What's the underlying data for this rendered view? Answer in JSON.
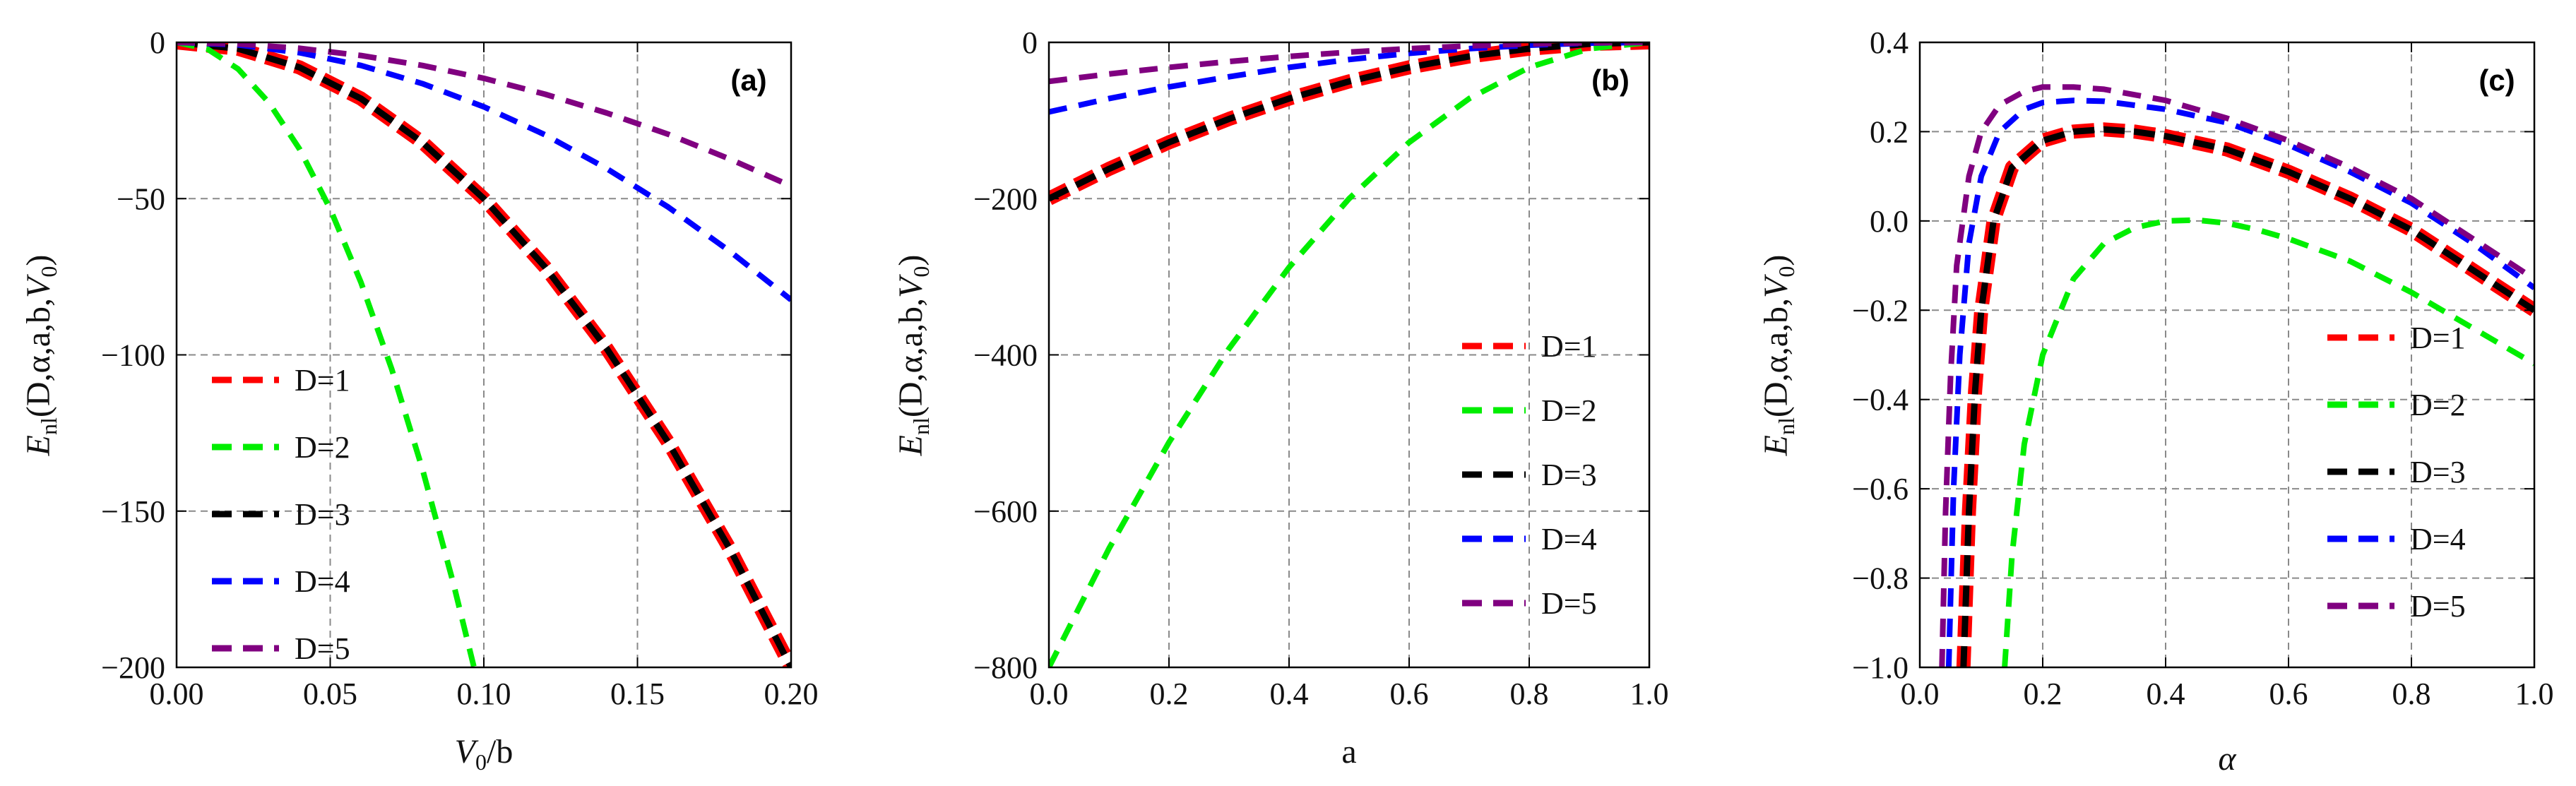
{
  "chart_data": [
    {
      "panel": "(a)",
      "type": "line",
      "xlabel": "V0/b",
      "ylabel": "Enl(D,α,a,b,V0)",
      "xlim": [
        0.0,
        0.2
      ],
      "ylim": [
        -200,
        0
      ],
      "xticks": [
        "0.00",
        "0.05",
        "0.10",
        "0.15",
        "0.20"
      ],
      "xtick_values": [
        0.0,
        0.05,
        0.1,
        0.15,
        0.2
      ],
      "yticks": [
        "0",
        "−50",
        "−100",
        "−150",
        "−200"
      ],
      "ytick_values": [
        0,
        -50,
        -100,
        -150,
        -200
      ],
      "grid": true,
      "legend_position": "bottom-left",
      "series": [
        {
          "name": "D=1",
          "color": "#ff0000",
          "x": [
            0.0,
            0.02,
            0.04,
            0.06,
            0.08,
            0.1,
            0.12,
            0.14,
            0.16,
            0.18,
            0.2
          ],
          "y": [
            0,
            -2,
            -8,
            -18,
            -32,
            -50,
            -72,
            -98,
            -128,
            -162,
            -200
          ]
        },
        {
          "name": "D=2",
          "color": "#00ee00",
          "x": [
            0.0,
            0.01,
            0.02,
            0.03,
            0.04,
            0.05,
            0.06,
            0.07,
            0.08,
            0.09,
            0.0968
          ],
          "y": [
            0,
            -2.1,
            -8.5,
            -19.2,
            -34.1,
            -53.3,
            -76.8,
            -104.5,
            -136.5,
            -172.8,
            -200
          ]
        },
        {
          "name": "D=3",
          "color": "#000000",
          "x": [
            0.0,
            0.02,
            0.04,
            0.06,
            0.08,
            0.1,
            0.12,
            0.14,
            0.16,
            0.18,
            0.2
          ],
          "y": [
            0,
            -2,
            -8,
            -18,
            -32,
            -50,
            -72,
            -98,
            -128,
            -162,
            -200
          ]
        },
        {
          "name": "D=4",
          "color": "#0000ff",
          "x": [
            0.0,
            0.02,
            0.04,
            0.06,
            0.08,
            0.1,
            0.12,
            0.14,
            0.16,
            0.18,
            0.2
          ],
          "y": [
            0,
            -0.8,
            -3.3,
            -7.4,
            -13.2,
            -20.6,
            -29.6,
            -40.4,
            -52.7,
            -66.8,
            -82.4
          ]
        },
        {
          "name": "D=5",
          "color": "#800080",
          "x": [
            0.0,
            0.02,
            0.04,
            0.06,
            0.08,
            0.1,
            0.12,
            0.14,
            0.16,
            0.18,
            0.2
          ],
          "y": [
            0,
            -0.5,
            -1.9,
            -4.2,
            -7.4,
            -11.5,
            -16.6,
            -22.6,
            -29.4,
            -37.3,
            -46
          ]
        }
      ]
    },
    {
      "panel": "(b)",
      "type": "line",
      "xlabel": "a",
      "ylabel": "Enl(D,α,a,b,V0)",
      "xlim": [
        0.0,
        1.0
      ],
      "ylim": [
        -800,
        0
      ],
      "xticks": [
        "0.0",
        "0.2",
        "0.4",
        "0.6",
        "0.8",
        "1.0"
      ],
      "xtick_values": [
        0.0,
        0.2,
        0.4,
        0.6,
        0.8,
        1.0
      ],
      "yticks": [
        "0",
        "−200",
        "−400",
        "−600",
        "−800"
      ],
      "ytick_values": [
        0,
        -200,
        -400,
        -600,
        -800
      ],
      "grid": true,
      "legend_position": "bottom-right",
      "series": [
        {
          "name": "D=1",
          "color": "#ff0000",
          "x": [
            0.0,
            0.1,
            0.2,
            0.3,
            0.4,
            0.5,
            0.6,
            0.7,
            0.8,
            0.9,
            1.0
          ],
          "y": [
            -200,
            -162,
            -128,
            -98,
            -72,
            -50,
            -32,
            -18,
            -8,
            -2,
            0
          ]
        },
        {
          "name": "D=2",
          "color": "#00ee00",
          "x": [
            0.0,
            0.1,
            0.2,
            0.3,
            0.4,
            0.5,
            0.6,
            0.7,
            0.8,
            0.9,
            1.0
          ],
          "y": [
            -800,
            -648,
            -512,
            -392,
            -288,
            -200,
            -128,
            -72,
            -32,
            -8,
            0
          ]
        },
        {
          "name": "D=3",
          "color": "#000000",
          "x": [
            0.0,
            0.1,
            0.2,
            0.3,
            0.4,
            0.5,
            0.6,
            0.7,
            0.8,
            0.9,
            1.0
          ],
          "y": [
            -200,
            -162,
            -128,
            -98,
            -72,
            -50,
            -32,
            -18,
            -8,
            -2,
            0
          ]
        },
        {
          "name": "D=4",
          "color": "#0000ff",
          "x": [
            0.0,
            0.1,
            0.2,
            0.3,
            0.4,
            0.5,
            0.6,
            0.7,
            0.8,
            0.9,
            1.0
          ],
          "y": [
            -89,
            -72,
            -57,
            -44,
            -32,
            -22,
            -14,
            -8,
            -3.6,
            -0.9,
            0
          ]
        },
        {
          "name": "D=5",
          "color": "#800080",
          "x": [
            0.0,
            0.1,
            0.2,
            0.3,
            0.4,
            0.5,
            0.6,
            0.7,
            0.8,
            0.9,
            1.0
          ],
          "y": [
            -50,
            -40.5,
            -32,
            -24.5,
            -18,
            -12.5,
            -8,
            -4.5,
            -2,
            -0.5,
            0
          ]
        }
      ]
    },
    {
      "panel": "(c)",
      "type": "line",
      "xlabel": "α",
      "ylabel": "Enl(D,α,a,b,V0)",
      "xlim": [
        0.0,
        1.0
      ],
      "ylim": [
        -1.0,
        0.4
      ],
      "xticks": [
        "0.0",
        "0.2",
        "0.4",
        "0.6",
        "0.8",
        "1.0"
      ],
      "xtick_values": [
        0.0,
        0.2,
        0.4,
        0.6,
        0.8,
        1.0
      ],
      "yticks": [
        "0.4",
        "0.2",
        "0.0",
        "−0.2",
        "−0.4",
        "−0.6",
        "−0.8",
        "−1.0"
      ],
      "ytick_values": [
        0.4,
        0.2,
        0.0,
        -0.2,
        -0.4,
        -0.6,
        -0.8,
        -1.0
      ],
      "grid": true,
      "legend_position": "right",
      "series": [
        {
          "name": "D=1",
          "color": "#ff0000",
          "x": [
            0.071,
            0.08,
            0.09,
            0.1,
            0.12,
            0.15,
            0.2,
            0.25,
            0.3,
            0.35,
            0.4,
            0.5,
            0.6,
            0.7,
            0.8,
            0.9,
            1.0
          ],
          "y": [
            -1.0,
            -0.65,
            -0.38,
            -0.2,
            0.0,
            0.12,
            0.18,
            0.2,
            0.205,
            0.2,
            0.19,
            0.16,
            0.11,
            0.05,
            -0.02,
            -0.11,
            -0.2
          ]
        },
        {
          "name": "D=2",
          "color": "#00ee00",
          "x": [
            0.138,
            0.15,
            0.17,
            0.2,
            0.25,
            0.3,
            0.35,
            0.4,
            0.45,
            0.5,
            0.55,
            0.6,
            0.7,
            0.8,
            0.9,
            1.0
          ],
          "y": [
            -1.0,
            -0.75,
            -0.5,
            -0.3,
            -0.13,
            -0.05,
            -0.015,
            0.0,
            0.002,
            -0.005,
            -0.02,
            -0.04,
            -0.09,
            -0.16,
            -0.24,
            -0.32
          ]
        },
        {
          "name": "D=3",
          "color": "#000000",
          "x": [
            0.071,
            0.08,
            0.09,
            0.1,
            0.12,
            0.15,
            0.2,
            0.25,
            0.3,
            0.35,
            0.4,
            0.5,
            0.6,
            0.7,
            0.8,
            0.9,
            1.0
          ],
          "y": [
            -1.0,
            -0.65,
            -0.38,
            -0.2,
            0.0,
            0.12,
            0.18,
            0.2,
            0.205,
            0.2,
            0.19,
            0.16,
            0.11,
            0.05,
            -0.02,
            -0.11,
            -0.2
          ]
        },
        {
          "name": "D=4",
          "color": "#0000ff",
          "x": [
            0.047,
            0.055,
            0.065,
            0.08,
            0.1,
            0.13,
            0.17,
            0.2,
            0.25,
            0.3,
            0.4,
            0.5,
            0.6,
            0.7,
            0.8,
            0.9,
            1.0
          ],
          "y": [
            -1.0,
            -0.6,
            -0.3,
            -0.05,
            0.1,
            0.2,
            0.25,
            0.265,
            0.27,
            0.268,
            0.25,
            0.22,
            0.17,
            0.11,
            0.04,
            -0.05,
            -0.15
          ]
        },
        {
          "name": "D=5",
          "color": "#800080",
          "x": [
            0.036,
            0.042,
            0.05,
            0.06,
            0.08,
            0.1,
            0.13,
            0.17,
            0.2,
            0.25,
            0.3,
            0.4,
            0.5,
            0.6,
            0.7,
            0.8,
            0.9,
            1.0
          ],
          "y": [
            -1.0,
            -0.65,
            -0.35,
            -0.1,
            0.1,
            0.2,
            0.26,
            0.29,
            0.3,
            0.3,
            0.295,
            0.27,
            0.23,
            0.18,
            0.12,
            0.05,
            -0.04,
            -0.13
          ]
        }
      ]
    }
  ]
}
